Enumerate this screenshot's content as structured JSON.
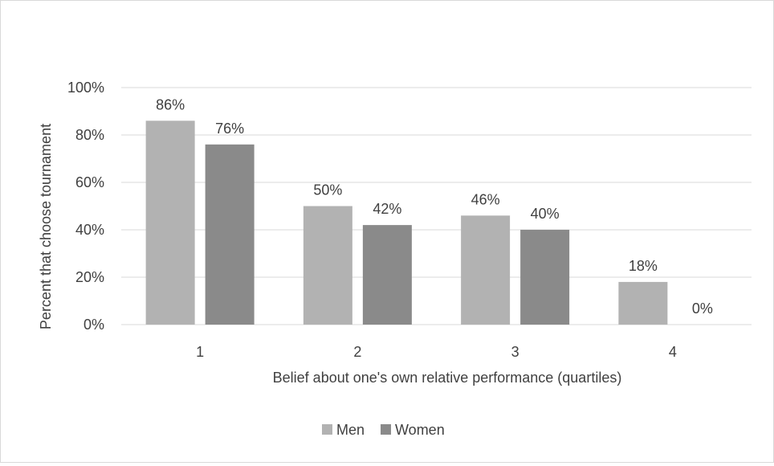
{
  "chart_data": {
    "type": "bar",
    "title": "",
    "categories": [
      "1",
      "2",
      "3",
      "4"
    ],
    "series": [
      {
        "name": "Men",
        "values": [
          86,
          50,
          46,
          18
        ],
        "color": "#b2b2b2"
      },
      {
        "name": "Women",
        "values": [
          76,
          42,
          40,
          0
        ],
        "color": "#8a8a8a"
      }
    ],
    "data_labels": [
      [
        "86%",
        "50%",
        "46%",
        "18%"
      ],
      [
        "76%",
        "42%",
        "40%",
        "0%"
      ]
    ],
    "xlabel": "Belief about one's own relative performance (quartiles)",
    "ylabel": "Percent that choose tournament",
    "ylim": [
      0,
      100
    ],
    "yticks": [
      "0%",
      "20%",
      "40%",
      "60%",
      "80%",
      "100%"
    ],
    "grid": true,
    "legend_position": "bottom",
    "gridline_color": "#d9d9d9",
    "text_color": "#404040"
  }
}
